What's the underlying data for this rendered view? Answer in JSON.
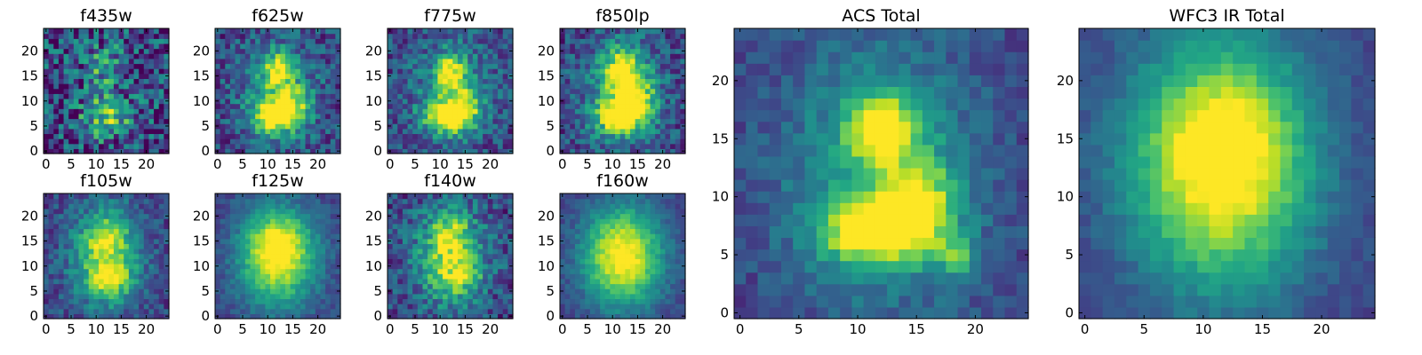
{
  "chart_data": [
    {
      "type": "heatmap",
      "title": "f435w",
      "xticks": [
        "0",
        "5",
        "10",
        "15",
        "20"
      ],
      "yticks": [
        "0",
        "5",
        "10",
        "15",
        "20"
      ],
      "xlim": [
        0,
        24
      ],
      "ylim": [
        0,
        24
      ],
      "colormap": "viridis",
      "seed": 11,
      "noise": 0.34,
      "blobs": [
        {
          "x": 12,
          "y": 7,
          "sx": 3.5,
          "sy": 3,
          "a": 0.55
        },
        {
          "x": 12,
          "y": 17,
          "sx": 3,
          "sy": 3,
          "a": 0.4
        }
      ]
    },
    {
      "type": "heatmap",
      "title": "f625w",
      "xticks": [
        "0",
        "5",
        "10",
        "15",
        "20"
      ],
      "yticks": [
        "0",
        "5",
        "10",
        "15",
        "20"
      ],
      "xlim": [
        0,
        24
      ],
      "ylim": [
        0,
        24
      ],
      "colormap": "viridis",
      "seed": 22,
      "noise": 0.2,
      "blobs": [
        {
          "x": 11,
          "y": 7,
          "sx": 3,
          "sy": 2.2,
          "a": 0.75
        },
        {
          "x": 12,
          "y": 16,
          "sx": 2,
          "sy": 2.5,
          "a": 0.6
        },
        {
          "x": 15,
          "y": 9,
          "sx": 2.5,
          "sy": 3,
          "a": 0.45
        },
        {
          "x": 12,
          "y": 12,
          "sx": 6,
          "sy": 8,
          "a": 0.3
        }
      ]
    },
    {
      "type": "heatmap",
      "title": "f775w",
      "xticks": [
        "0",
        "5",
        "10",
        "15",
        "20"
      ],
      "yticks": [
        "0",
        "5",
        "10",
        "15",
        "20"
      ],
      "xlim": [
        0,
        24
      ],
      "ylim": [
        0,
        24
      ],
      "colormap": "viridis",
      "seed": 33,
      "noise": 0.2,
      "blobs": [
        {
          "x": 11,
          "y": 7,
          "sx": 3,
          "sy": 2.2,
          "a": 0.75
        },
        {
          "x": 12,
          "y": 16,
          "sx": 2,
          "sy": 2.5,
          "a": 0.6
        },
        {
          "x": 15,
          "y": 9,
          "sx": 2.5,
          "sy": 3,
          "a": 0.45
        },
        {
          "x": 12,
          "y": 12,
          "sx": 6,
          "sy": 8,
          "a": 0.3
        }
      ]
    },
    {
      "type": "heatmap",
      "title": "f850lp",
      "xticks": [
        "0",
        "5",
        "10",
        "15",
        "20"
      ],
      "yticks": [
        "0",
        "5",
        "10",
        "15",
        "20"
      ],
      "xlim": [
        0,
        24
      ],
      "ylim": [
        0,
        24
      ],
      "colormap": "viridis",
      "seed": 44,
      "noise": 0.2,
      "blobs": [
        {
          "x": 11,
          "y": 7,
          "sx": 3,
          "sy": 2.5,
          "a": 0.7
        },
        {
          "x": 12,
          "y": 16,
          "sx": 2.5,
          "sy": 3,
          "a": 0.65
        },
        {
          "x": 15,
          "y": 10,
          "sx": 2.5,
          "sy": 3,
          "a": 0.5
        },
        {
          "x": 12,
          "y": 12,
          "sx": 6,
          "sy": 8,
          "a": 0.35
        }
      ]
    },
    {
      "type": "heatmap",
      "title": "f105w",
      "xticks": [
        "0",
        "5",
        "10",
        "15",
        "20"
      ],
      "yticks": [
        "0",
        "5",
        "10",
        "15",
        "20"
      ],
      "xlim": [
        0,
        24
      ],
      "ylim": [
        0,
        24
      ],
      "colormap": "viridis",
      "seed": 55,
      "noise": 0.15,
      "blobs": [
        {
          "x": 12,
          "y": 12,
          "sx": 5,
          "sy": 7,
          "a": 0.6
        },
        {
          "x": 12,
          "y": 16,
          "sx": 2.5,
          "sy": 2.5,
          "a": 0.3
        },
        {
          "x": 13,
          "y": 7,
          "sx": 3,
          "sy": 2.5,
          "a": 0.3
        }
      ]
    },
    {
      "type": "heatmap",
      "title": "f125w",
      "xticks": [
        "0",
        "5",
        "10",
        "15",
        "20"
      ],
      "yticks": [
        "0",
        "5",
        "10",
        "15",
        "20"
      ],
      "xlim": [
        0,
        24
      ],
      "ylim": [
        0,
        24
      ],
      "colormap": "viridis",
      "seed": 66,
      "noise": 0.09,
      "blobs": [
        {
          "x": 12,
          "y": 12,
          "sx": 5.5,
          "sy": 7,
          "a": 0.8
        },
        {
          "x": 12,
          "y": 15,
          "sx": 3,
          "sy": 3,
          "a": 0.2
        }
      ]
    },
    {
      "type": "heatmap",
      "title": "f140w",
      "xticks": [
        "0",
        "5",
        "10",
        "15",
        "20"
      ],
      "yticks": [
        "0",
        "5",
        "10",
        "15",
        "20"
      ],
      "xlim": [
        0,
        24
      ],
      "ylim": [
        0,
        24
      ],
      "colormap": "viridis",
      "seed": 77,
      "noise": 0.2,
      "blobs": [
        {
          "x": 12,
          "y": 12,
          "sx": 5,
          "sy": 7,
          "a": 0.6
        },
        {
          "x": 12,
          "y": 16,
          "sx": 2.5,
          "sy": 2.5,
          "a": 0.3
        },
        {
          "x": 14,
          "y": 8,
          "sx": 3,
          "sy": 2.5,
          "a": 0.25
        }
      ]
    },
    {
      "type": "heatmap",
      "title": "f160w",
      "xticks": [
        "0",
        "5",
        "10",
        "15",
        "20"
      ],
      "yticks": [
        "0",
        "5",
        "10",
        "15",
        "20"
      ],
      "xlim": [
        0,
        24
      ],
      "ylim": [
        0,
        24
      ],
      "colormap": "viridis",
      "seed": 88,
      "noise": 0.08,
      "blobs": [
        {
          "x": 12,
          "y": 12,
          "sx": 5.5,
          "sy": 7,
          "a": 0.85
        }
      ]
    },
    {
      "type": "heatmap",
      "title": "ACS Total",
      "xticks": [
        "0",
        "5",
        "10",
        "15",
        "20"
      ],
      "yticks": [
        "0",
        "5",
        "10",
        "15",
        "20"
      ],
      "xlim": [
        0,
        24
      ],
      "ylim": [
        0,
        24
      ],
      "colormap": "viridis",
      "seed": 99,
      "noise": 0.1,
      "blobs": [
        {
          "x": 11.5,
          "y": 7,
          "sx": 3,
          "sy": 1.8,
          "a": 0.8
        },
        {
          "x": 12,
          "y": 16,
          "sx": 1.8,
          "sy": 2,
          "a": 0.7
        },
        {
          "x": 15,
          "y": 9.5,
          "sx": 2.2,
          "sy": 2.5,
          "a": 0.55
        },
        {
          "x": 18.5,
          "y": 5,
          "sx": 1.2,
          "sy": 1.2,
          "a": 0.35
        },
        {
          "x": 12,
          "y": 12,
          "sx": 6,
          "sy": 8,
          "a": 0.4
        }
      ]
    },
    {
      "type": "heatmap",
      "title": "WFC3 IR Total",
      "xticks": [
        "0",
        "5",
        "10",
        "15",
        "20"
      ],
      "yticks": [
        "0",
        "5",
        "10",
        "15",
        "20"
      ],
      "xlim": [
        0,
        24
      ],
      "ylim": [
        0,
        24
      ],
      "colormap": "viridis",
      "seed": 111,
      "noise": 0.06,
      "blobs": [
        {
          "x": 11.5,
          "y": 13,
          "sx": 5.5,
          "sy": 7.5,
          "a": 0.9
        },
        {
          "x": 12,
          "y": 15,
          "sx": 2.5,
          "sy": 2.5,
          "a": 0.15
        }
      ]
    }
  ]
}
